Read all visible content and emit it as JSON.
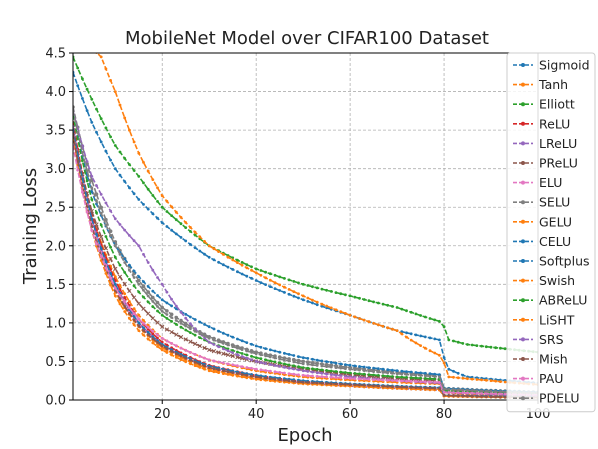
{
  "chart_data": {
    "type": "line",
    "title": "MobileNet Model over CIFAR100 Dataset",
    "xlabel": "Epoch",
    "ylabel": "Training Loss",
    "xlim": [
      1,
      100
    ],
    "ylim": [
      0,
      4.5
    ],
    "xticks": [
      20,
      40,
      60,
      80,
      100
    ],
    "yticks": [
      0.0,
      0.5,
      1.0,
      1.5,
      2.0,
      2.5,
      3.0,
      3.5,
      4.0,
      4.5
    ],
    "grid": true,
    "legend_position": "right",
    "series": [
      {
        "name": "Sigmoid",
        "color": "#1f77b4",
        "marker": "dot",
        "values": {
          "1": 4.25,
          "5": 3.6,
          "10": 3.0,
          "15": 2.6,
          "20": 2.3,
          "30": 1.85,
          "40": 1.55,
          "50": 1.3,
          "60": 1.1,
          "70": 0.9,
          "79": 0.78,
          "80": 0.55,
          "81": 0.4,
          "85": 0.3,
          "100": 0.22
        }
      },
      {
        "name": "Tanh",
        "color": "#ff7f0e",
        "marker": "dot",
        "values": {
          "1": 3.5,
          "5": 2.4,
          "10": 1.6,
          "15": 1.1,
          "20": 0.8,
          "30": 0.52,
          "40": 0.38,
          "50": 0.3,
          "60": 0.26,
          "70": 0.23,
          "79": 0.21,
          "80": 0.1,
          "85": 0.07,
          "100": 0.05
        }
      },
      {
        "name": "Elliott",
        "color": "#2ca02c",
        "marker": "dot",
        "values": {
          "1": 4.45,
          "5": 3.9,
          "10": 3.3,
          "15": 2.9,
          "20": 2.5,
          "30": 2.0,
          "40": 1.7,
          "50": 1.5,
          "60": 1.35,
          "70": 1.2,
          "79": 1.02,
          "80": 0.95,
          "81": 0.78,
          "85": 0.72,
          "100": 0.62
        }
      },
      {
        "name": "ReLU",
        "color": "#d62728",
        "marker": "dot",
        "values": {
          "1": 3.6,
          "5": 2.4,
          "10": 1.55,
          "15": 1.05,
          "20": 0.75,
          "30": 0.45,
          "40": 0.32,
          "50": 0.24,
          "60": 0.2,
          "70": 0.17,
          "79": 0.15,
          "80": 0.06,
          "100": 0.03
        }
      },
      {
        "name": "LReLU",
        "color": "#9467bd",
        "marker": "dot",
        "values": {
          "1": 3.55,
          "5": 2.35,
          "10": 1.5,
          "15": 1.0,
          "20": 0.72,
          "30": 0.42,
          "40": 0.3,
          "50": 0.22,
          "60": 0.18,
          "70": 0.15,
          "79": 0.13,
          "80": 0.05,
          "100": 0.03
        }
      },
      {
        "name": "PReLU",
        "color": "#8c564b",
        "marker": "x",
        "values": {
          "1": 3.5,
          "5": 2.45,
          "10": 1.7,
          "15": 1.25,
          "20": 0.95,
          "30": 0.65,
          "40": 0.5,
          "50": 0.4,
          "60": 0.33,
          "70": 0.28,
          "79": 0.25,
          "80": 0.12,
          "100": 0.08
        }
      },
      {
        "name": "ELU",
        "color": "#e377c2",
        "marker": "dot",
        "values": {
          "1": 3.45,
          "5": 2.3,
          "10": 1.45,
          "15": 0.98,
          "20": 0.7,
          "30": 0.42,
          "40": 0.3,
          "50": 0.23,
          "60": 0.2,
          "70": 0.17,
          "79": 0.15,
          "80": 0.06,
          "100": 0.04
        }
      },
      {
        "name": "SELU",
        "color": "#7f7f7f",
        "marker": "circle",
        "values": {
          "1": 3.8,
          "5": 2.85,
          "10": 2.05,
          "15": 1.55,
          "20": 1.2,
          "30": 0.82,
          "40": 0.62,
          "50": 0.5,
          "60": 0.42,
          "70": 0.36,
          "79": 0.32,
          "80": 0.15,
          "100": 0.1
        }
      },
      {
        "name": "GELU",
        "color": "#ff7f0e",
        "marker": "dot",
        "values": {
          "1": 3.45,
          "5": 2.25,
          "10": 1.4,
          "15": 0.95,
          "20": 0.68,
          "30": 0.4,
          "40": 0.28,
          "50": 0.22,
          "60": 0.19,
          "70": 0.16,
          "79": 0.14,
          "80": 0.05,
          "100": 0.03
        }
      },
      {
        "name": "CELU",
        "color": "#1f77b4",
        "marker": "dot",
        "values": {
          "1": 3.5,
          "5": 2.35,
          "10": 1.5,
          "15": 1.0,
          "20": 0.72,
          "30": 0.44,
          "40": 0.32,
          "50": 0.25,
          "60": 0.21,
          "70": 0.18,
          "79": 0.16,
          "80": 0.06,
          "100": 0.04
        }
      },
      {
        "name": "Softplus",
        "color": "#1f77b4",
        "marker": "dot",
        "values": {
          "1": 3.7,
          "5": 2.7,
          "10": 2.0,
          "15": 1.6,
          "20": 1.3,
          "30": 0.95,
          "40": 0.7,
          "50": 0.55,
          "60": 0.45,
          "70": 0.38,
          "79": 0.33,
          "80": 0.15,
          "100": 0.1
        }
      },
      {
        "name": "Swish",
        "color": "#ff7f0e",
        "marker": "dot",
        "values": {
          "1": 3.4,
          "5": 2.2,
          "10": 1.35,
          "15": 0.9,
          "20": 0.65,
          "30": 0.38,
          "40": 0.27,
          "50": 0.21,
          "60": 0.18,
          "70": 0.15,
          "79": 0.13,
          "80": 0.05,
          "100": 0.03
        }
      },
      {
        "name": "ABReLU",
        "color": "#2ca02c",
        "marker": "dot",
        "values": {
          "1": 3.7,
          "5": 2.6,
          "10": 1.85,
          "15": 1.4,
          "20": 1.1,
          "30": 0.75,
          "40": 0.55,
          "50": 0.42,
          "60": 0.35,
          "70": 0.3,
          "79": 0.27,
          "80": 0.12,
          "100": 0.08
        }
      },
      {
        "name": "LiSHT",
        "color": "#ff7f0e",
        "marker": "dot",
        "values": {
          "1": 4.8,
          "7": 4.45,
          "10": 4.0,
          "15": 3.2,
          "20": 2.65,
          "30": 2.0,
          "40": 1.65,
          "50": 1.35,
          "60": 1.1,
          "70": 0.9,
          "79": 0.58,
          "80": 0.48,
          "81": 0.3,
          "90": 0.25,
          "100": 0.2
        }
      },
      {
        "name": "SRS",
        "color": "#9467bd",
        "marker": "dot",
        "values": {
          "1": 3.75,
          "5": 2.9,
          "10": 2.35,
          "15": 2.0,
          "20": 1.5,
          "30": 0.75,
          "40": 0.5,
          "50": 0.38,
          "60": 0.3,
          "70": 0.25,
          "79": 0.22,
          "80": 0.1,
          "100": 0.06
        }
      },
      {
        "name": "Mish",
        "color": "#8c564b",
        "marker": "dot",
        "values": {
          "1": 3.45,
          "5": 2.25,
          "10": 1.42,
          "15": 0.96,
          "20": 0.7,
          "30": 0.42,
          "40": 0.3,
          "50": 0.23,
          "60": 0.2,
          "70": 0.17,
          "79": 0.15,
          "80": 0.06,
          "100": 0.03
        }
      },
      {
        "name": "PAU",
        "color": "#e377c2",
        "marker": "dot",
        "values": {
          "1": 3.3,
          "5": 2.2,
          "10": 1.45,
          "15": 1.05,
          "20": 0.8,
          "30": 0.52,
          "40": 0.4,
          "50": 0.32,
          "60": 0.28,
          "70": 0.25,
          "79": 0.23,
          "80": 0.1,
          "100": 0.07
        }
      },
      {
        "name": "PDELU",
        "color": "#7f7f7f",
        "marker": "dot",
        "values": {
          "1": 3.75,
          "5": 2.75,
          "10": 2.0,
          "15": 1.5,
          "20": 1.15,
          "30": 0.8,
          "40": 0.6,
          "50": 0.47,
          "60": 0.4,
          "70": 0.34,
          "79": 0.3,
          "80": 0.14,
          "100": 0.09
        }
      }
    ]
  }
}
